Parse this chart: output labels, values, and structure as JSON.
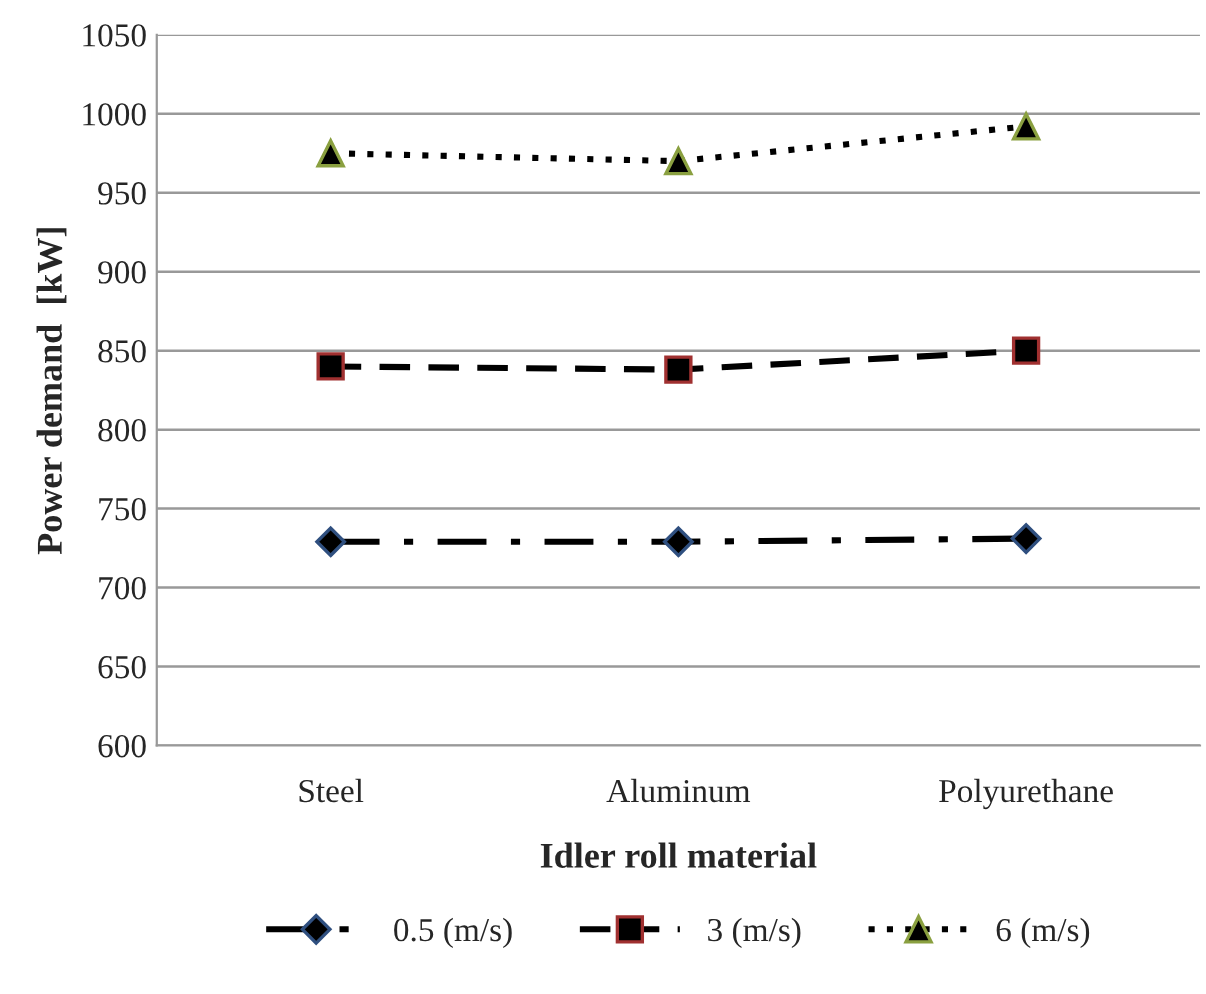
{
  "chart_data": {
    "type": "line",
    "xlabel": "Idler roll material",
    "ylabel": "Power demand  [kW]",
    "categories": [
      "Steel",
      "Aluminum",
      "Polyurethane"
    ],
    "series": [
      {
        "name": "0.5 (m/s)",
        "color": "#000000",
        "values": [
          729,
          729,
          731
        ],
        "marker": "diamond",
        "line_style": "dashdot"
      },
      {
        "name": "3 (m/s)",
        "color": "#000000",
        "values": [
          840,
          838,
          850
        ],
        "marker": "square",
        "line_style": "dashed"
      },
      {
        "name": "6 (m/s)",
        "color": "#000000",
        "values": [
          975,
          970,
          992
        ],
        "marker": "triangle",
        "line_style": "dotted"
      }
    ],
    "ylim": [
      600,
      1050
    ],
    "yticks": [
      600,
      650,
      700,
      750,
      800,
      850,
      900,
      950,
      1000,
      1050
    ],
    "grid": "y",
    "legend": "bottom"
  }
}
